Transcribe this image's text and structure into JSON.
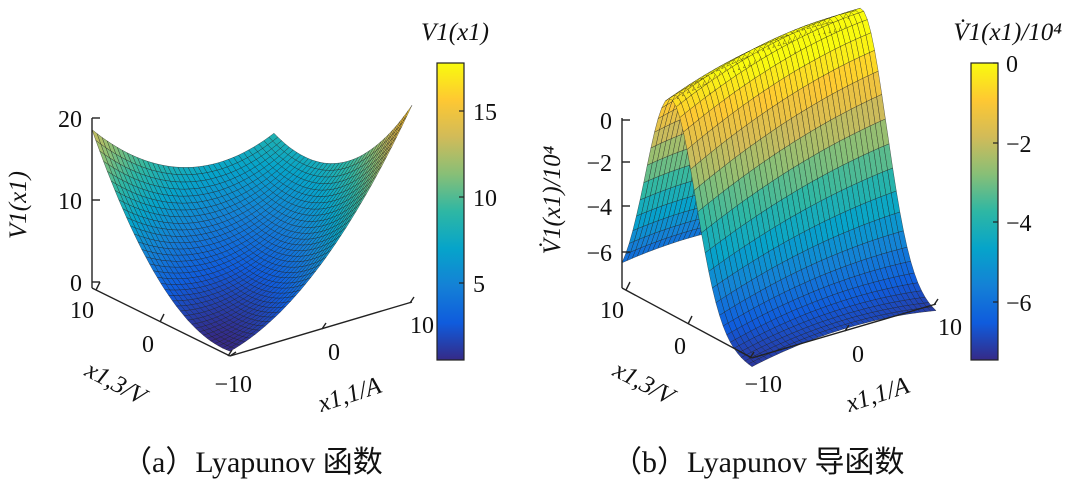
{
  "chart_data": [
    {
      "type": "surface",
      "panel": "a",
      "caption": "（a）Lyapunov 函数",
      "colorbar_title": "V1(x1)",
      "zlabel": "V1(x1)",
      "xlabel": "x1,1/A",
      "ylabel": "x1,3/V",
      "x_ticks": [
        "−10",
        "0",
        "10"
      ],
      "y_ticks": [
        "10",
        "0",
        "−10"
      ],
      "z_ticks": [
        "0",
        "10",
        "20"
      ],
      "colorbar_ticks": [
        "5",
        "10",
        "15"
      ],
      "x_range": [
        -10,
        10
      ],
      "y_range": [
        -10,
        10
      ],
      "z_range": [
        0,
        20
      ],
      "colorbar_range": [
        0.5,
        17.5
      ],
      "colormap": [
        "#352a87",
        "#0f5cdd",
        "#1481d6",
        "#06a4ca",
        "#2eb7a4",
        "#87bf77",
        "#d1bb59",
        "#fec832",
        "#f9fb0e"
      ],
      "corner_values": {
        "x_min_y_max": 15.5,
        "x_min_y_min": 8.0,
        "x_max_y_max": 10.5,
        "x_max_y_min": 15.0
      },
      "minimum_value": 1.0
    },
    {
      "type": "surface",
      "panel": "b",
      "caption": "（b）Lyapunov 导函数",
      "colorbar_title": "V̇1(x1)/10⁴",
      "zlabel": "V̇1(x1)/10⁴",
      "xlabel": "x1,1/A",
      "ylabel": "x1,3/V",
      "x_ticks": [
        "−10",
        "0",
        "10"
      ],
      "y_ticks": [
        "10",
        "0",
        "−10"
      ],
      "z_ticks": [
        "−6",
        "−4",
        "−2",
        "0"
      ],
      "colorbar_ticks": [
        "−6",
        "−4",
        "−2",
        "0"
      ],
      "x_range": [
        -10,
        10
      ],
      "y_range": [
        -10,
        10
      ],
      "z_range": [
        -7,
        0
      ],
      "colorbar_range": [
        -7.5,
        0
      ],
      "colormap": [
        "#352a87",
        "#0f5cdd",
        "#1481d6",
        "#06a4ca",
        "#2eb7a4",
        "#87bf77",
        "#d1bb59",
        "#fec832",
        "#f9fb0e"
      ],
      "corner_values": {
        "x_min_y_max": -7.0,
        "x_max_y_max": -2.5,
        "x_max_y_min": -7.0
      },
      "maximum_value": 0.0
    }
  ]
}
